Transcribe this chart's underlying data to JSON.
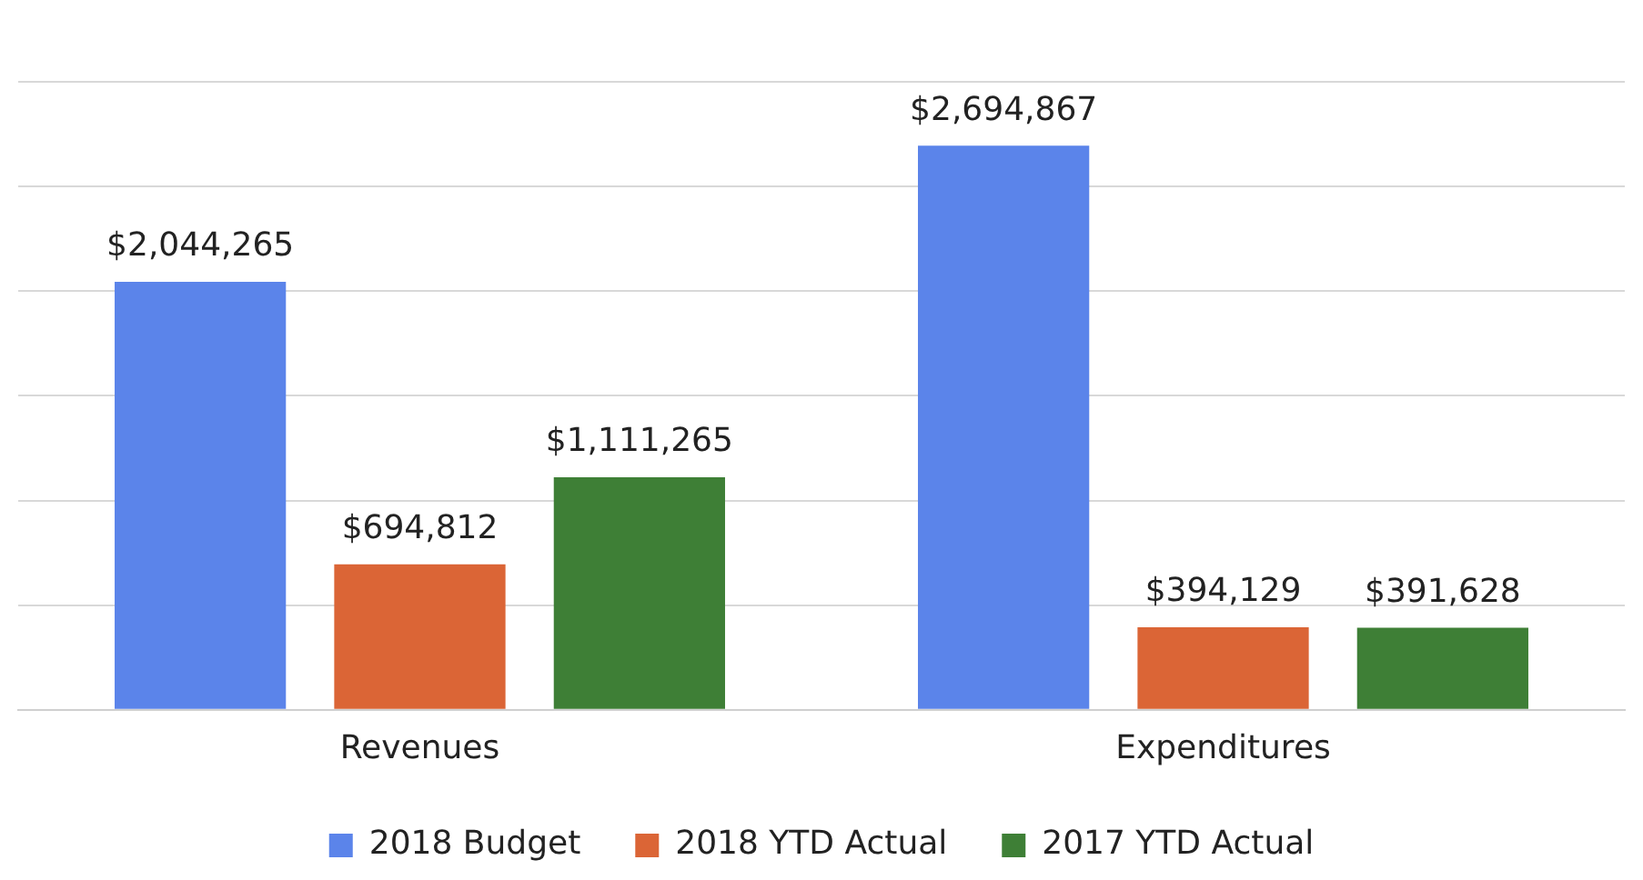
{
  "chart_data": {
    "type": "bar",
    "categories": [
      "Revenues",
      "Expenditures"
    ],
    "series": [
      {
        "name": "2018 Budget",
        "color": "#5b84ea",
        "values": [
          2044265,
          2694867
        ],
        "value_labels": [
          "$2,044,265",
          "$2,694,867"
        ]
      },
      {
        "name": "2018 YTD Actual",
        "color": "#db6536",
        "values": [
          694812,
          394129
        ],
        "value_labels": [
          "$694,812",
          "$394,129"
        ]
      },
      {
        "name": "2017 YTD Actual",
        "color": "#3e7f36",
        "values": [
          1111265,
          391628
        ],
        "value_labels": [
          "$1,111,265",
          "$391,628"
        ]
      }
    ],
    "ylim": [
      0,
      3000000
    ],
    "yticks": [
      {
        "value": 0,
        "label": null
      },
      {
        "value": 500000,
        "label": null
      },
      {
        "value": 1000000,
        "label": null
      },
      {
        "value": 1500000,
        "label": null
      },
      {
        "value": 2000000,
        "label": null
      },
      {
        "value": 2500000,
        "label": null
      },
      {
        "value": 3000000,
        "label": null
      }
    ],
    "tick_labels": "x",
    "grid": "y",
    "legend": "bottom"
  }
}
